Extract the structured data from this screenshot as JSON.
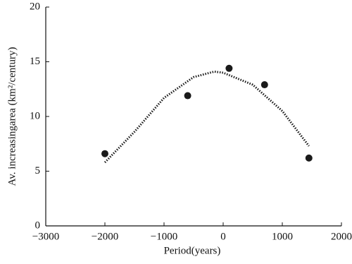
{
  "chart_data": {
    "type": "scatter",
    "x_label": "Period(years)",
    "y_label": "Av. increasingarea (km²/century)",
    "series": [
      {
        "mode": "markers",
        "color": "#1a1a1a",
        "x": [
          -2000,
          -600,
          100,
          700,
          1450
        ],
        "values": [
          6.6,
          11.9,
          14.4,
          12.9,
          6.2
        ]
      },
      {
        "mode": "dotted-line",
        "color": "#1a1a1a",
        "x": [
          -2000,
          -1500,
          -1000,
          -500,
          -150,
          0,
          500,
          1000,
          1450
        ],
        "values": [
          5.8,
          8.6,
          11.7,
          13.6,
          14.1,
          14.0,
          12.9,
          10.5,
          7.3
        ]
      }
    ],
    "xlim": [
      -3000,
      2000
    ],
    "xticks": [
      {
        "value": -3000,
        "label": "−3000"
      },
      {
        "value": -2000,
        "label": "−2000"
      },
      {
        "value": -1000,
        "label": "−1000"
      },
      0,
      1000,
      2000
    ],
    "ylim": [
      0,
      20
    ],
    "yticks": [
      0,
      5,
      10,
      15,
      20
    ]
  }
}
